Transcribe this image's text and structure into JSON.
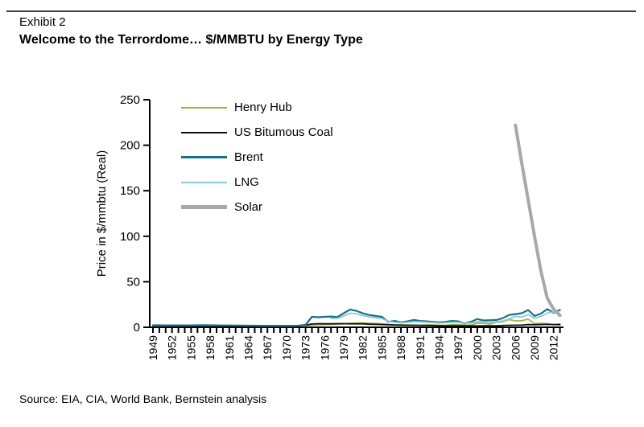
{
  "header": {
    "exhibit_label": "Exhibit 2",
    "title": "Welcome to the Terrordome… $/MMBTU by Energy Type"
  },
  "source": "Source: EIA, CIA, World Bank, Bernstein analysis",
  "chart_data": {
    "type": "line",
    "title": "Welcome to the Terrordome… $/MMBTU by Energy Type",
    "xlabel": "",
    "ylabel": "Price in $/mmbtu (Real)",
    "ylim": [
      0,
      250
    ],
    "yticks": [
      0,
      50,
      100,
      150,
      200,
      250
    ],
    "xlim": [
      1949,
      2013
    ],
    "x_step": 1,
    "grid": false,
    "legend_position": "upper-left-inside",
    "xtick_labels": [
      "1949",
      "1952",
      "1955",
      "1958",
      "1961",
      "1964",
      "1967",
      "1970",
      "1973",
      "1976",
      "1979",
      "1982",
      "1985",
      "1988",
      "1991",
      "1994",
      "1997",
      "2000",
      "2003",
      "2006",
      "2009",
      "2012"
    ],
    "series": [
      {
        "name": "Henry Hub",
        "color": "#a6b347",
        "width": 1.8,
        "x_start": 1949,
        "values": [
          1.6,
          1.6,
          1.7,
          1.7,
          1.7,
          1.8,
          1.8,
          1.8,
          1.9,
          1.9,
          1.9,
          1.8,
          1.8,
          1.8,
          1.7,
          1.7,
          1.7,
          1.6,
          1.6,
          1.6,
          1.6,
          1.6,
          1.7,
          1.8,
          2.0,
          2.4,
          2.8,
          3.0,
          3.2,
          3.2,
          3.8,
          4.2,
          4.6,
          4.8,
          4.5,
          4.2,
          3.8,
          3.0,
          2.6,
          2.6,
          2.5,
          2.4,
          2.2,
          2.4,
          2.6,
          2.3,
          2.0,
          3.0,
          2.8,
          2.4,
          2.5,
          4.5,
          4.2,
          3.5,
          5.5,
          6.0,
          8.5,
          7.0,
          7.2,
          9.0,
          4.0,
          4.4,
          4.0,
          2.8,
          3.7
        ]
      },
      {
        "name": "US Bitumous Coal",
        "color": "#111111",
        "width": 1.8,
        "x_start": 1949,
        "values": [
          1.8,
          1.8,
          1.8,
          1.8,
          1.7,
          1.7,
          1.7,
          1.7,
          1.8,
          1.8,
          1.7,
          1.7,
          1.6,
          1.6,
          1.6,
          1.5,
          1.5,
          1.5,
          1.5,
          1.5,
          1.6,
          1.6,
          1.8,
          1.9,
          2.2,
          3.6,
          4.0,
          3.8,
          3.8,
          4.0,
          4.0,
          3.8,
          3.8,
          3.8,
          3.4,
          3.2,
          3.0,
          2.8,
          2.6,
          2.4,
          2.2,
          2.2,
          2.1,
          2.0,
          1.9,
          1.8,
          1.7,
          1.7,
          1.6,
          1.6,
          1.5,
          1.5,
          1.6,
          1.6,
          1.6,
          1.9,
          2.2,
          2.3,
          2.3,
          3.0,
          2.8,
          3.0,
          3.2,
          3.0,
          2.9
        ]
      },
      {
        "name": "Brent",
        "color": "#19708c",
        "width": 2.2,
        "x_start": 1949,
        "values": [
          2.2,
          2.2,
          2.1,
          2.1,
          2.1,
          2.1,
          2.1,
          2.2,
          2.3,
          2.2,
          2.1,
          2.0,
          2.0,
          1.9,
          1.9,
          1.8,
          1.8,
          1.7,
          1.7,
          1.6,
          1.6,
          1.5,
          1.7,
          1.8,
          2.8,
          11.5,
          11.0,
          11.5,
          11.8,
          11.2,
          15.5,
          19.5,
          18.0,
          15.5,
          13.5,
          12.5,
          11.5,
          6.0,
          7.0,
          5.5,
          6.5,
          8.0,
          7.0,
          6.5,
          6.0,
          5.5,
          6.0,
          7.0,
          6.5,
          4.2,
          6.0,
          9.0,
          7.5,
          7.8,
          8.0,
          10.0,
          13.5,
          14.5,
          15.5,
          19.0,
          12.5,
          15.0,
          20.0,
          16.0,
          19.0
        ]
      },
      {
        "name": "LNG",
        "color": "#8ec8d6",
        "width": 1.8,
        "x_start": 1977,
        "values": [
          9.5,
          9.8,
          12.5,
          15.5,
          15.0,
          13.0,
          11.5,
          10.5,
          9.5,
          6.5,
          5.5,
          5.0,
          5.5,
          6.0,
          6.0,
          5.5,
          5.2,
          4.8,
          5.0,
          5.5,
          5.5,
          4.5,
          4.8,
          6.0,
          6.2,
          5.5,
          6.0,
          7.0,
          9.0,
          12.0,
          11.0,
          14.0,
          10.0,
          12.0,
          15.5,
          17.0,
          15.0
        ]
      },
      {
        "name": "Solar",
        "color": "#a8a8a8",
        "width": 4,
        "x_start": 2006,
        "values": [
          222,
          180,
          140,
          100,
          62,
          32,
          20,
          13
        ]
      }
    ]
  }
}
